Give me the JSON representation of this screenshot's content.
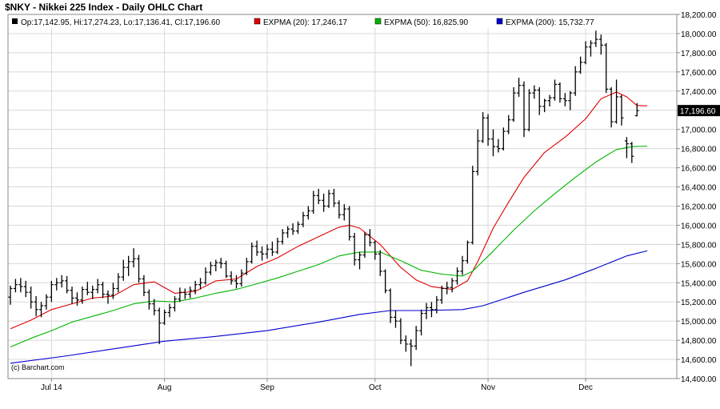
{
  "colors": {
    "background": "#ffffff",
    "grid": "#d8d8d8",
    "frame": "#888888",
    "bars": "#000000",
    "ema20": "#e00000",
    "ema50": "#00b400",
    "ema200": "#0000d0",
    "last_price_box": "#000000",
    "last_price_text": "#ffffff"
  },
  "chart_data": {
    "type": "ohlc",
    "title": "$NKY - Nikkei 225 Index - Daily OHLC Chart",
    "watermark": "(c) Barchart.com",
    "legend": {
      "placement": "top",
      "ohlc_label": "Op:17,142.95, Hi:17,274.23, Lo:17,136.41, Cl:17,196.60",
      "series": [
        {
          "key": "ema20",
          "label": "EXPMA (20): 17,246.17",
          "color": "#e00000"
        },
        {
          "key": "ema50",
          "label": "EXPMA (50): 16,825.90",
          "color": "#00b400"
        },
        {
          "key": "ema200",
          "label": "EXPMA (200): 15,732.77",
          "color": "#0000d0"
        }
      ]
    },
    "last_price_label": "17,196.60",
    "last_price": 17196.6,
    "ylim": [
      14400,
      18200
    ],
    "y_ticks": [
      14400,
      14600,
      14800,
      15000,
      15200,
      15400,
      15600,
      15800,
      16000,
      16200,
      16400,
      16600,
      16800,
      17000,
      17200,
      17400,
      17600,
      17800,
      18000,
      18200
    ],
    "y_tick_labels": [
      "14,400.00",
      "14,600.00",
      "14,800.00",
      "15,000.00",
      "15,200.00",
      "15,400.00",
      "15,600.00",
      "15,800.00",
      "16,000.00",
      "16,200.00",
      "16,400.00",
      "16,600.00",
      "16,800.00",
      "17,000.00",
      "17,200.00",
      "17,400.00",
      "17,600.00",
      "17,800.00",
      "18,000.00",
      "18,200.00"
    ],
    "x_ticks": [
      {
        "label": "Jul 14",
        "index": 8
      },
      {
        "label": "Aug",
        "index": 30
      },
      {
        "label": "Sep",
        "index": 50
      },
      {
        "label": "Oct",
        "index": 71
      },
      {
        "label": "Nov",
        "index": 93
      },
      {
        "label": "Dec",
        "index": 112
      }
    ],
    "ohlc": [
      [
        15250,
        15370,
        15170,
        15340
      ],
      [
        15340,
        15440,
        15300,
        15380
      ],
      [
        15380,
        15450,
        15300,
        15360
      ],
      [
        15360,
        15420,
        15250,
        15300
      ],
      [
        15300,
        15360,
        15130,
        15200
      ],
      [
        15200,
        15260,
        15050,
        15120
      ],
      [
        15120,
        15200,
        15040,
        15160
      ],
      [
        15160,
        15280,
        15120,
        15250
      ],
      [
        15250,
        15420,
        15200,
        15380
      ],
      [
        15380,
        15450,
        15320,
        15400
      ],
      [
        15400,
        15480,
        15350,
        15420
      ],
      [
        15420,
        15470,
        15290,
        15320
      ],
      [
        15320,
        15360,
        15180,
        15240
      ],
      [
        15240,
        15300,
        15160,
        15220
      ],
      [
        15220,
        15360,
        15180,
        15330
      ],
      [
        15330,
        15410,
        15270,
        15300
      ],
      [
        15300,
        15370,
        15230,
        15330
      ],
      [
        15330,
        15440,
        15290,
        15380
      ],
      [
        15380,
        15410,
        15240,
        15280
      ],
      [
        15280,
        15320,
        15180,
        15270
      ],
      [
        15270,
        15400,
        15230,
        15340
      ],
      [
        15340,
        15500,
        15300,
        15460
      ],
      [
        15460,
        15640,
        15420,
        15560
      ],
      [
        15560,
        15680,
        15470,
        15620
      ],
      [
        15620,
        15760,
        15560,
        15650
      ],
      [
        15650,
        15690,
        15400,
        15440
      ],
      [
        15440,
        15480,
        15260,
        15300
      ],
      [
        15300,
        15330,
        15120,
        15180
      ],
      [
        15180,
        15230,
        15060,
        15110
      ],
      [
        15110,
        15140,
        14760,
        14980
      ],
      [
        14980,
        15120,
        14960,
        15090
      ],
      [
        15090,
        15180,
        15040,
        15140
      ],
      [
        15140,
        15260,
        15100,
        15230
      ],
      [
        15230,
        15350,
        15200,
        15300
      ],
      [
        15300,
        15340,
        15230,
        15280
      ],
      [
        15280,
        15360,
        15240,
        15320
      ],
      [
        15320,
        15420,
        15280,
        15380
      ],
      [
        15380,
        15450,
        15330,
        15400
      ],
      [
        15400,
        15560,
        15380,
        15510
      ],
      [
        15510,
        15620,
        15480,
        15580
      ],
      [
        15580,
        15640,
        15520,
        15610
      ],
      [
        15610,
        15660,
        15550,
        15600
      ],
      [
        15600,
        15630,
        15450,
        15470
      ],
      [
        15470,
        15520,
        15380,
        15420
      ],
      [
        15420,
        15480,
        15340,
        15390
      ],
      [
        15390,
        15540,
        15360,
        15500
      ],
      [
        15500,
        15660,
        15480,
        15620
      ],
      [
        15620,
        15820,
        15600,
        15780
      ],
      [
        15780,
        15840,
        15680,
        15720
      ],
      [
        15720,
        15780,
        15630,
        15700
      ],
      [
        15700,
        15800,
        15650,
        15750
      ],
      [
        15750,
        15830,
        15680,
        15720
      ],
      [
        15720,
        15870,
        15700,
        15830
      ],
      [
        15830,
        15960,
        15800,
        15920
      ],
      [
        15920,
        15990,
        15870,
        15960
      ],
      [
        15960,
        16020,
        15900,
        15940
      ],
      [
        15940,
        16040,
        15910,
        16010
      ],
      [
        16010,
        16140,
        15980,
        16100
      ],
      [
        16100,
        16200,
        16060,
        16150
      ],
      [
        16150,
        16360,
        16120,
        16310
      ],
      [
        16310,
        16380,
        16220,
        16260
      ],
      [
        16260,
        16330,
        16140,
        16200
      ],
      [
        16200,
        16370,
        16180,
        16330
      ],
      [
        16330,
        16380,
        16190,
        16230
      ],
      [
        16230,
        16260,
        16070,
        16110
      ],
      [
        16110,
        16220,
        16050,
        16170
      ],
      [
        16170,
        16200,
        15840,
        15880
      ],
      [
        15880,
        15920,
        15580,
        15640
      ],
      [
        15640,
        15720,
        15540,
        15690
      ],
      [
        15690,
        15930,
        15660,
        15900
      ],
      [
        15900,
        15960,
        15780,
        15820
      ],
      [
        15820,
        15840,
        15640,
        15700
      ],
      [
        15700,
        15740,
        15470,
        15520
      ],
      [
        15520,
        15540,
        15290,
        15320
      ],
      [
        15320,
        15340,
        14980,
        15040
      ],
      [
        15040,
        15110,
        14930,
        15000
      ],
      [
        15000,
        15030,
        14760,
        14800
      ],
      [
        14800,
        14850,
        14680,
        14760
      ],
      [
        14760,
        14810,
        14530,
        14740
      ],
      [
        14740,
        14950,
        14700,
        14900
      ],
      [
        14900,
        15120,
        14850,
        15080
      ],
      [
        15080,
        15190,
        15020,
        15140
      ],
      [
        15140,
        15200,
        15040,
        15120
      ],
      [
        15120,
        15260,
        15080,
        15220
      ],
      [
        15220,
        15370,
        15180,
        15340
      ],
      [
        15340,
        15410,
        15280,
        15350
      ],
      [
        15350,
        15450,
        15300,
        15420
      ],
      [
        15420,
        15560,
        15380,
        15520
      ],
      [
        15520,
        15680,
        15480,
        15630
      ],
      [
        15630,
        15840,
        15600,
        15820
      ],
      [
        15820,
        16620,
        15800,
        16560
      ],
      [
        16560,
        17000,
        16520,
        16880
      ],
      [
        16880,
        17180,
        16860,
        17120
      ],
      [
        17120,
        17160,
        16830,
        16900
      ],
      [
        16900,
        17000,
        16720,
        16820
      ],
      [
        16820,
        16900,
        16760,
        16800
      ],
      [
        16800,
        17020,
        16780,
        16980
      ],
      [
        16980,
        17150,
        16950,
        17100
      ],
      [
        17100,
        17440,
        17080,
        17380
      ],
      [
        17380,
        17540,
        17340,
        17460
      ],
      [
        17460,
        17500,
        16920,
        17000
      ],
      [
        17000,
        17420,
        16980,
        17380
      ],
      [
        17380,
        17460,
        17320,
        17410
      ],
      [
        17410,
        17440,
        17150,
        17240
      ],
      [
        17240,
        17320,
        17180,
        17300
      ],
      [
        17300,
        17360,
        17240,
        17330
      ],
      [
        17330,
        17520,
        17300,
        17470
      ],
      [
        17470,
        17490,
        17280,
        17320
      ],
      [
        17320,
        17380,
        17240,
        17300
      ],
      [
        17300,
        17400,
        17200,
        17380
      ],
      [
        17380,
        17660,
        17350,
        17600
      ],
      [
        17600,
        17760,
        17580,
        17700
      ],
      [
        17700,
        17920,
        17680,
        17860
      ],
      [
        17860,
        17930,
        17760,
        17900
      ],
      [
        17900,
        18030,
        17860,
        17940
      ],
      [
        17940,
        17990,
        17780,
        17880
      ],
      [
        17880,
        17900,
        17380,
        17420
      ],
      [
        17420,
        17440,
        17020,
        17080
      ],
      [
        17080,
        17520,
        17060,
        17340
      ],
      [
        17340,
        17360,
        17040,
        17120
      ],
      [
        16880,
        16920,
        16700,
        16850
      ],
      [
        16850,
        16870,
        16650,
        16720
      ],
      [
        17142.95,
        17274.23,
        17136.41,
        17196.6
      ]
    ],
    "ema20": [
      [
        0,
        14920
      ],
      [
        4,
        15010
      ],
      [
        8,
        15120
      ],
      [
        12,
        15180
      ],
      [
        16,
        15240
      ],
      [
        20,
        15260
      ],
      [
        24,
        15380
      ],
      [
        28,
        15410
      ],
      [
        32,
        15290
      ],
      [
        36,
        15310
      ],
      [
        40,
        15420
      ],
      [
        44,
        15440
      ],
      [
        48,
        15570
      ],
      [
        52,
        15660
      ],
      [
        56,
        15780
      ],
      [
        60,
        15880
      ],
      [
        64,
        15980
      ],
      [
        66,
        16000
      ],
      [
        68,
        15970
      ],
      [
        72,
        15800
      ],
      [
        76,
        15560
      ],
      [
        79,
        15430
      ],
      [
        82,
        15360
      ],
      [
        86,
        15330
      ],
      [
        89,
        15420
      ],
      [
        91,
        15620
      ],
      [
        94,
        15970
      ],
      [
        97,
        16240
      ],
      [
        100,
        16500
      ],
      [
        104,
        16760
      ],
      [
        108,
        16920
      ],
      [
        112,
        17110
      ],
      [
        115,
        17320
      ],
      [
        118,
        17390
      ],
      [
        120,
        17340
      ],
      [
        122,
        17250
      ],
      [
        124,
        17246.17
      ]
    ],
    "ema50": [
      [
        0,
        14730
      ],
      [
        4,
        14820
      ],
      [
        8,
        14900
      ],
      [
        12,
        14990
      ],
      [
        16,
        15050
      ],
      [
        20,
        15110
      ],
      [
        24,
        15180
      ],
      [
        28,
        15210
      ],
      [
        32,
        15200
      ],
      [
        36,
        15240
      ],
      [
        40,
        15290
      ],
      [
        44,
        15330
      ],
      [
        48,
        15390
      ],
      [
        52,
        15450
      ],
      [
        56,
        15520
      ],
      [
        60,
        15590
      ],
      [
        64,
        15680
      ],
      [
        68,
        15720
      ],
      [
        72,
        15720
      ],
      [
        76,
        15630
      ],
      [
        80,
        15530
      ],
      [
        84,
        15490
      ],
      [
        88,
        15470
      ],
      [
        90,
        15520
      ],
      [
        94,
        15730
      ],
      [
        98,
        15950
      ],
      [
        102,
        16150
      ],
      [
        106,
        16330
      ],
      [
        110,
        16500
      ],
      [
        114,
        16660
      ],
      [
        118,
        16790
      ],
      [
        121,
        16820
      ],
      [
        124,
        16825.9
      ]
    ],
    "ema200": [
      [
        0,
        14560
      ],
      [
        10,
        14630
      ],
      [
        20,
        14710
      ],
      [
        30,
        14790
      ],
      [
        40,
        14840
      ],
      [
        50,
        14900
      ],
      [
        60,
        14990
      ],
      [
        68,
        15070
      ],
      [
        74,
        15110
      ],
      [
        80,
        15110
      ],
      [
        88,
        15120
      ],
      [
        92,
        15160
      ],
      [
        100,
        15300
      ],
      [
        108,
        15430
      ],
      [
        114,
        15550
      ],
      [
        120,
        15680
      ],
      [
        124,
        15732.77
      ]
    ]
  }
}
